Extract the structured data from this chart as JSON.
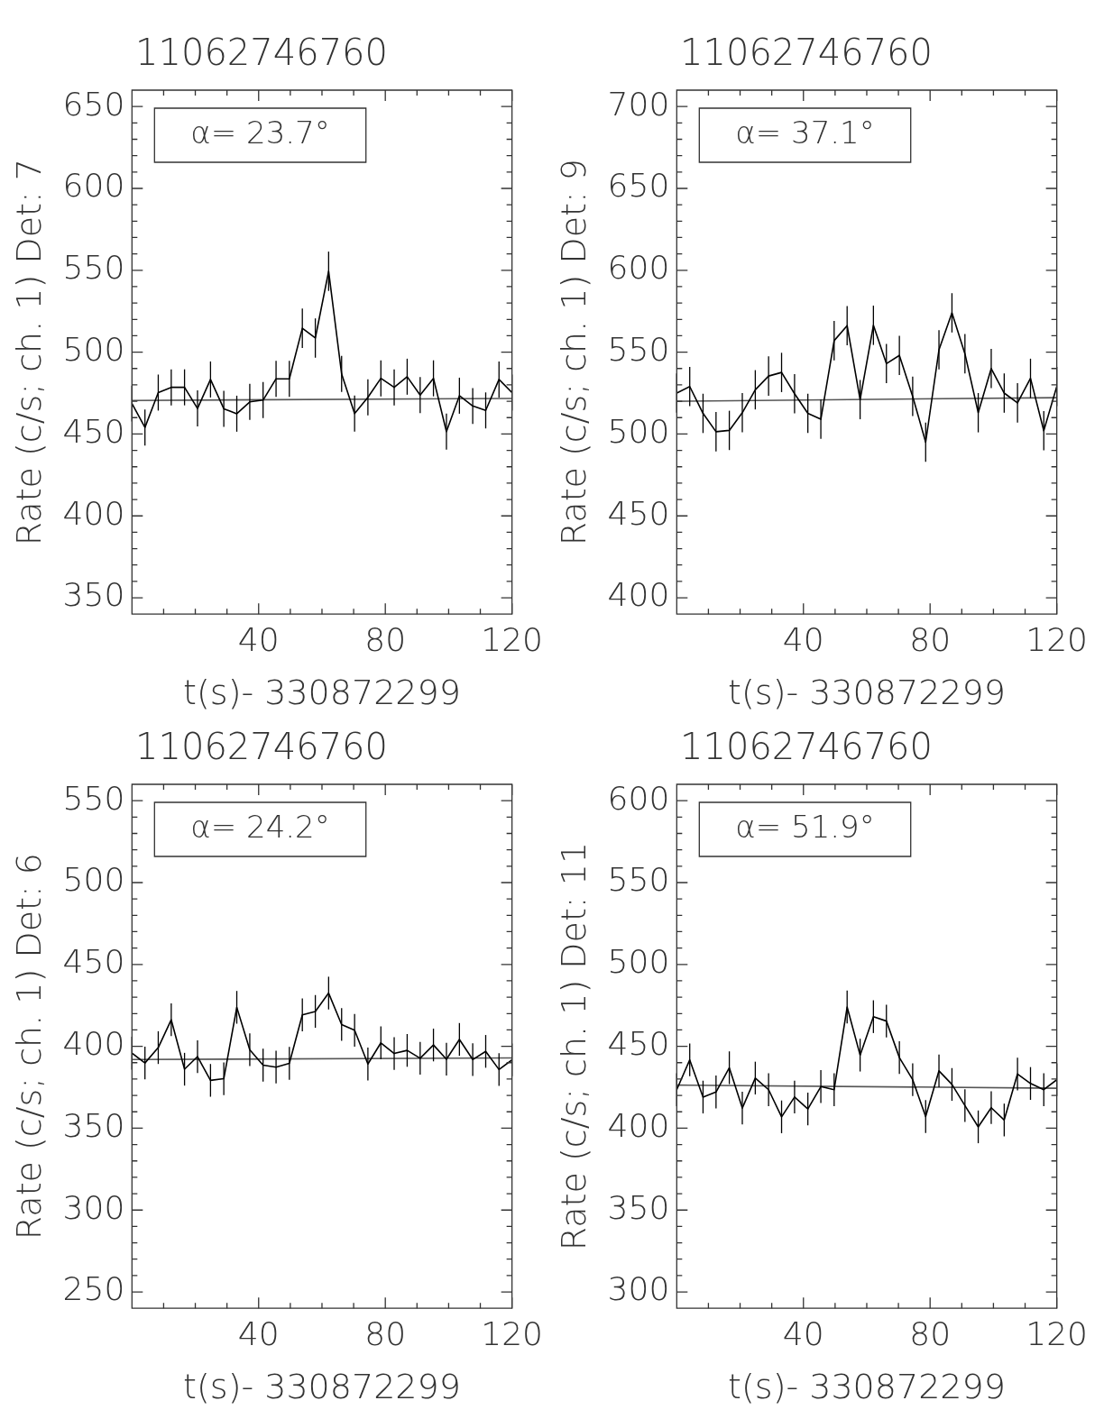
{
  "chart_data": [
    {
      "type": "line",
      "title": "11062746760",
      "xlabel": "t(s)- 330872299",
      "ylabel": "Rate (c/s; ch. 1) Det: 7",
      "annotations": [
        "α= 23.7°"
      ],
      "xlim": [
        0,
        120
      ],
      "xticks": [
        {
          "value": 10,
          "label": null
        },
        {
          "value": 20,
          "label": null
        },
        {
          "value": 30,
          "label": null
        },
        40,
        {
          "value": 50,
          "label": null
        },
        {
          "value": 60,
          "label": null
        },
        {
          "value": 70,
          "label": null
        },
        80,
        {
          "value": 90,
          "label": null
        },
        {
          "value": 100,
          "label": null
        },
        {
          "value": 110,
          "label": null
        },
        120
      ],
      "ylim": [
        340,
        660
      ],
      "yticks": [
        350,
        {
          "value": 360,
          "label": null
        },
        {
          "value": 370,
          "label": null
        },
        {
          "value": 380,
          "label": null
        },
        {
          "value": 390,
          "label": null
        },
        400,
        {
          "value": 410,
          "label": null
        },
        {
          "value": 420,
          "label": null
        },
        {
          "value": 430,
          "label": null
        },
        {
          "value": 440,
          "label": null
        },
        450,
        {
          "value": 460,
          "label": null
        },
        {
          "value": 470,
          "label": null
        },
        {
          "value": 480,
          "label": null
        },
        {
          "value": 490,
          "label": null
        },
        500,
        {
          "value": 510,
          "label": null
        },
        {
          "value": 520,
          "label": null
        },
        {
          "value": 530,
          "label": null
        },
        {
          "value": 540,
          "label": null
        },
        550,
        {
          "value": 560,
          "label": null
        },
        {
          "value": 570,
          "label": null
        },
        {
          "value": 580,
          "label": null
        },
        {
          "value": 590,
          "label": null
        },
        600,
        {
          "value": 610,
          "label": null
        },
        {
          "value": 620,
          "label": null
        },
        {
          "value": 630,
          "label": null
        },
        {
          "value": 640,
          "label": null
        },
        650
      ],
      "grid": false,
      "legend": false,
      "marker": "none",
      "line_style": "solid",
      "series": [
        {
          "type": "line",
          "color": "#000000",
          "x": [
            0,
            4.1,
            8.3,
            12.4,
            16.6,
            20.7,
            24.8,
            29.0,
            33.1,
            37.2,
            41.4,
            45.5,
            49.7,
            53.8,
            57.9,
            62.1,
            66.2,
            70.3,
            74.5,
            78.6,
            82.8,
            86.9,
            91.0,
            95.2,
            99.3,
            103.4,
            107.6,
            111.7,
            115.9,
            120
          ],
          "values": [
            468.6,
            454,
            475.3,
            478.5,
            478.5,
            465.6,
            483.3,
            465.4,
            462.4,
            469.6,
            470.7,
            483.7,
            483.7,
            514.6,
            508.6,
            549.4,
            486.7,
            462.5,
            472.4,
            484,
            478.5,
            485,
            473.8,
            484,
            451.5,
            473.4,
            467.1,
            464.4,
            483.3,
            475.3
          ],
          "errors": [
            11,
            11,
            11,
            11,
            11,
            11,
            11,
            11,
            11,
            11,
            11,
            11,
            11,
            12,
            12,
            12,
            11,
            11,
            11,
            11,
            11,
            11,
            11,
            11,
            11,
            11,
            11,
            11,
            11,
            11
          ]
        },
        {
          "type": "line",
          "color": "#555555",
          "x": [
            0,
            120
          ],
          "values": [
            470.5,
            471.7
          ]
        }
      ]
    },
    {
      "type": "line",
      "title": "11062746760",
      "xlabel": "t(s)- 330872299",
      "ylabel": "Rate (c/s; ch. 1) Det: 9",
      "annotations": [
        "α= 37.1°"
      ],
      "xlim": [
        0,
        120
      ],
      "xticks": [
        {
          "value": 10,
          "label": null
        },
        {
          "value": 20,
          "label": null
        },
        {
          "value": 30,
          "label": null
        },
        40,
        {
          "value": 50,
          "label": null
        },
        {
          "value": 60,
          "label": null
        },
        {
          "value": 70,
          "label": null
        },
        80,
        {
          "value": 90,
          "label": null
        },
        {
          "value": 100,
          "label": null
        },
        {
          "value": 110,
          "label": null
        },
        120
      ],
      "ylim": [
        390,
        710
      ],
      "yticks": [
        400,
        {
          "value": 410,
          "label": null
        },
        {
          "value": 420,
          "label": null
        },
        {
          "value": 430,
          "label": null
        },
        {
          "value": 440,
          "label": null
        },
        450,
        {
          "value": 460,
          "label": null
        },
        {
          "value": 470,
          "label": null
        },
        {
          "value": 480,
          "label": null
        },
        {
          "value": 490,
          "label": null
        },
        500,
        {
          "value": 510,
          "label": null
        },
        {
          "value": 520,
          "label": null
        },
        {
          "value": 530,
          "label": null
        },
        {
          "value": 540,
          "label": null
        },
        550,
        {
          "value": 560,
          "label": null
        },
        {
          "value": 570,
          "label": null
        },
        {
          "value": 580,
          "label": null
        },
        {
          "value": 590,
          "label": null
        },
        600,
        {
          "value": 610,
          "label": null
        },
        {
          "value": 620,
          "label": null
        },
        {
          "value": 630,
          "label": null
        },
        {
          "value": 640,
          "label": null
        },
        650,
        {
          "value": 660,
          "label": null
        },
        {
          "value": 670,
          "label": null
        },
        {
          "value": 680,
          "label": null
        },
        {
          "value": 690,
          "label": null
        },
        700
      ],
      "grid": false,
      "legend": false,
      "marker": "none",
      "line_style": "solid",
      "series": [
        {
          "type": "line",
          "color": "#000000",
          "x": [
            0,
            4.1,
            8.3,
            12.4,
            16.6,
            20.7,
            24.8,
            29.0,
            33.1,
            37.2,
            41.4,
            45.5,
            49.7,
            53.8,
            57.9,
            62.1,
            66.2,
            70.3,
            74.5,
            78.6,
            82.8,
            86.9,
            91.0,
            95.2,
            99.3,
            103.4,
            107.6,
            111.7,
            115.9,
            120
          ],
          "values": [
            525,
            529,
            512.6,
            501.4,
            502.2,
            513,
            527,
            535.4,
            537.6,
            524.6,
            512.6,
            509,
            557,
            566.2,
            521,
            566.4,
            543,
            548,
            523,
            495,
            551.4,
            574,
            549,
            513,
            540,
            525,
            519,
            534,
            502,
            529
          ],
          "errors": [
            12,
            12,
            12,
            12,
            12,
            12,
            12,
            12,
            12,
            12,
            12,
            12,
            12,
            12,
            12,
            12,
            12,
            12,
            12,
            12,
            12,
            12,
            12,
            12,
            12,
            12,
            12,
            12,
            12,
            12
          ]
        },
        {
          "type": "line",
          "color": "#555555",
          "x": [
            0,
            120
          ],
          "values": [
            520,
            522.2
          ]
        }
      ]
    },
    {
      "type": "line",
      "title": "11062746760",
      "xlabel": "t(s)- 330872299",
      "ylabel": "Rate (c/s; ch. 1) Det: 6",
      "annotations": [
        "α= 24.2°"
      ],
      "xlim": [
        0,
        120
      ],
      "xticks": [
        {
          "value": 10,
          "label": null
        },
        {
          "value": 20,
          "label": null
        },
        {
          "value": 30,
          "label": null
        },
        40,
        {
          "value": 50,
          "label": null
        },
        {
          "value": 60,
          "label": null
        },
        {
          "value": 70,
          "label": null
        },
        80,
        {
          "value": 90,
          "label": null
        },
        {
          "value": 100,
          "label": null
        },
        {
          "value": 110,
          "label": null
        },
        120
      ],
      "ylim": [
        240,
        560
      ],
      "yticks": [
        250,
        {
          "value": 260,
          "label": null
        },
        {
          "value": 270,
          "label": null
        },
        {
          "value": 280,
          "label": null
        },
        {
          "value": 290,
          "label": null
        },
        300,
        {
          "value": 310,
          "label": null
        },
        {
          "value": 320,
          "label": null
        },
        {
          "value": 330,
          "label": null
        },
        {
          "value": 340,
          "label": null
        },
        350,
        {
          "value": 360,
          "label": null
        },
        {
          "value": 370,
          "label": null
        },
        {
          "value": 380,
          "label": null
        },
        {
          "value": 390,
          "label": null
        },
        400,
        {
          "value": 410,
          "label": null
        },
        {
          "value": 420,
          "label": null
        },
        {
          "value": 430,
          "label": null
        },
        {
          "value": 440,
          "label": null
        },
        450,
        {
          "value": 460,
          "label": null
        },
        {
          "value": 470,
          "label": null
        },
        {
          "value": 480,
          "label": null
        },
        {
          "value": 490,
          "label": null
        },
        500,
        {
          "value": 510,
          "label": null
        },
        {
          "value": 520,
          "label": null
        },
        {
          "value": 530,
          "label": null
        },
        {
          "value": 540,
          "label": null
        },
        550
      ],
      "grid": false,
      "legend": false,
      "marker": "none",
      "line_style": "solid",
      "series": [
        {
          "type": "line",
          "color": "#000000",
          "x": [
            0,
            4.1,
            8.3,
            12.4,
            16.6,
            20.7,
            24.8,
            29.0,
            33.1,
            37.2,
            41.4,
            45.5,
            49.7,
            53.8,
            57.9,
            62.1,
            66.2,
            70.3,
            74.5,
            78.6,
            82.8,
            86.9,
            91.0,
            95.2,
            99.3,
            103.4,
            107.6,
            111.7,
            115.9,
            120
          ],
          "values": [
            395.8,
            389.8,
            399.2,
            416.2,
            386,
            393.7,
            379.2,
            380.2,
            423.8,
            397.9,
            388.5,
            387.3,
            389.6,
            419.2,
            421.3,
            432.5,
            413.3,
            409.8,
            389.2,
            402.1,
            395.6,
            397.5,
            392.7,
            400.8,
            392.1,
            404.2,
            391.9,
            396.9,
            385.8,
            391.7
          ],
          "errors": [
            10,
            10,
            10,
            10,
            10,
            10,
            10,
            10,
            10,
            10,
            10,
            10,
            10,
            10,
            10,
            10,
            10,
            10,
            10,
            10,
            10,
            10,
            10,
            10,
            10,
            10,
            10,
            10,
            10,
            10
          ]
        },
        {
          "type": "line",
          "color": "#555555",
          "x": [
            0,
            120
          ],
          "values": [
            391.9,
            392.9
          ]
        }
      ]
    },
    {
      "type": "line",
      "title": "11062746760",
      "xlabel": "t(s)- 330872299",
      "ylabel": "Rate (c/s; ch. 1) Det: 11",
      "annotations": [
        "α= 51.9°"
      ],
      "xlim": [
        0,
        120
      ],
      "xticks": [
        {
          "value": 10,
          "label": null
        },
        {
          "value": 20,
          "label": null
        },
        {
          "value": 30,
          "label": null
        },
        40,
        {
          "value": 50,
          "label": null
        },
        {
          "value": 60,
          "label": null
        },
        {
          "value": 70,
          "label": null
        },
        80,
        {
          "value": 90,
          "label": null
        },
        {
          "value": 100,
          "label": null
        },
        {
          "value": 110,
          "label": null
        },
        120
      ],
      "ylim": [
        290,
        610
      ],
      "yticks": [
        300,
        {
          "value": 310,
          "label": null
        },
        {
          "value": 320,
          "label": null
        },
        {
          "value": 330,
          "label": null
        },
        {
          "value": 340,
          "label": null
        },
        350,
        {
          "value": 360,
          "label": null
        },
        {
          "value": 370,
          "label": null
        },
        {
          "value": 380,
          "label": null
        },
        {
          "value": 390,
          "label": null
        },
        400,
        {
          "value": 410,
          "label": null
        },
        {
          "value": 420,
          "label": null
        },
        {
          "value": 430,
          "label": null
        },
        {
          "value": 440,
          "label": null
        },
        450,
        {
          "value": 460,
          "label": null
        },
        {
          "value": 470,
          "label": null
        },
        {
          "value": 480,
          "label": null
        },
        {
          "value": 490,
          "label": null
        },
        500,
        {
          "value": 510,
          "label": null
        },
        {
          "value": 520,
          "label": null
        },
        {
          "value": 530,
          "label": null
        },
        {
          "value": 540,
          "label": null
        },
        550,
        {
          "value": 560,
          "label": null
        },
        {
          "value": 570,
          "label": null
        },
        {
          "value": 580,
          "label": null
        },
        {
          "value": 590,
          "label": null
        },
        600
      ],
      "grid": false,
      "legend": false,
      "marker": "none",
      "line_style": "solid",
      "series": [
        {
          "type": "line",
          "color": "#000000",
          "x": [
            0,
            4.1,
            8.3,
            12.4,
            16.6,
            20.7,
            24.8,
            29.0,
            33.1,
            37.2,
            41.4,
            45.5,
            49.7,
            53.8,
            57.9,
            62.1,
            66.2,
            70.3,
            74.5,
            78.6,
            82.8,
            86.9,
            91.0,
            95.2,
            99.3,
            103.4,
            107.6,
            111.7,
            115.9,
            120
          ],
          "values": [
            423.5,
            441.7,
            419,
            422.1,
            436.9,
            412.3,
            430.6,
            423.5,
            406.9,
            419,
            411.7,
            425.4,
            423.5,
            474,
            444.6,
            468.1,
            465.4,
            443.1,
            429.6,
            407.1,
            435,
            426.7,
            413.8,
            400.8,
            412.5,
            405,
            433.1,
            427.3,
            423.5,
            429.6
          ],
          "errors": [
            10,
            10,
            10,
            10,
            10,
            10,
            10,
            10,
            10,
            10,
            10,
            10,
            10,
            10,
            10,
            10,
            10,
            10,
            10,
            10,
            10,
            10,
            10,
            10,
            10,
            10,
            10,
            10,
            10,
            10
          ]
        },
        {
          "type": "line",
          "color": "#555555",
          "x": [
            0,
            120
          ],
          "values": [
            426.3,
            424.4
          ]
        }
      ]
    }
  ]
}
